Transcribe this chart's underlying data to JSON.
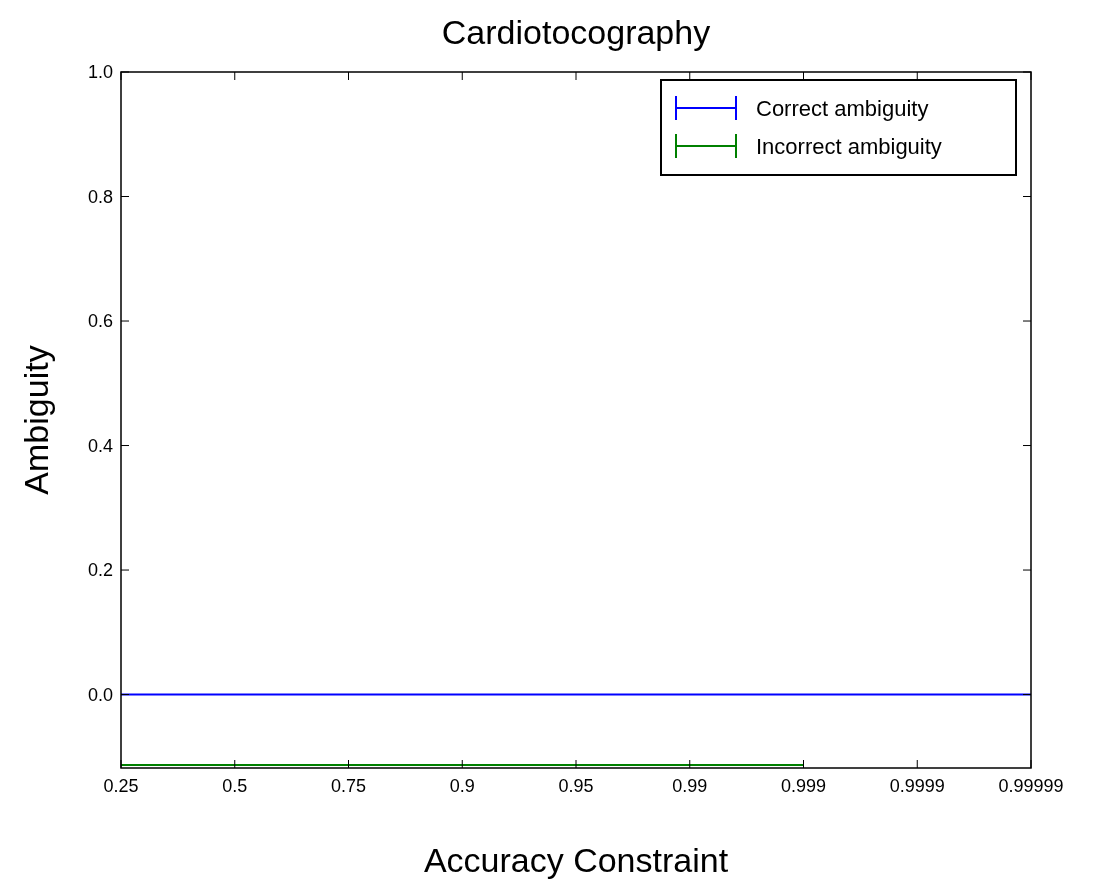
{
  "chart_data": {
    "type": "line",
    "title": "Cardiotocography",
    "xlabel": "Accuracy Constraint",
    "ylabel": "Ambiguity",
    "categories": [
      "0.25",
      "0.5",
      "0.75",
      "0.9",
      "0.95",
      "0.99",
      "0.999",
      "0.9999",
      "0.99999"
    ],
    "series": [
      {
        "name": "Correct ambiguity",
        "color": "#0000ff",
        "values": [
          0,
          0,
          0,
          0,
          0,
          0,
          0,
          0,
          0
        ]
      },
      {
        "name": "Incorrect ambiguity",
        "color": "#008000",
        "values": [
          -0.113,
          -0.113,
          -0.113,
          -0.113,
          -0.113,
          -0.113,
          -0.113,
          null,
          null
        ]
      }
    ],
    "ylim": [
      -0.118,
      1.0
    ],
    "yticks": [
      {
        "value": 0,
        "label": "0.0"
      },
      {
        "value": 0.2,
        "label": "0.2"
      },
      {
        "value": 0.4,
        "label": "0.4"
      },
      {
        "value": 0.6,
        "label": "0.6"
      },
      {
        "value": 0.8,
        "label": "0.8"
      },
      {
        "value": 1,
        "label": "1.0"
      }
    ],
    "legend": "top right",
    "grid": false,
    "marker": "none",
    "line_style": "solid"
  }
}
